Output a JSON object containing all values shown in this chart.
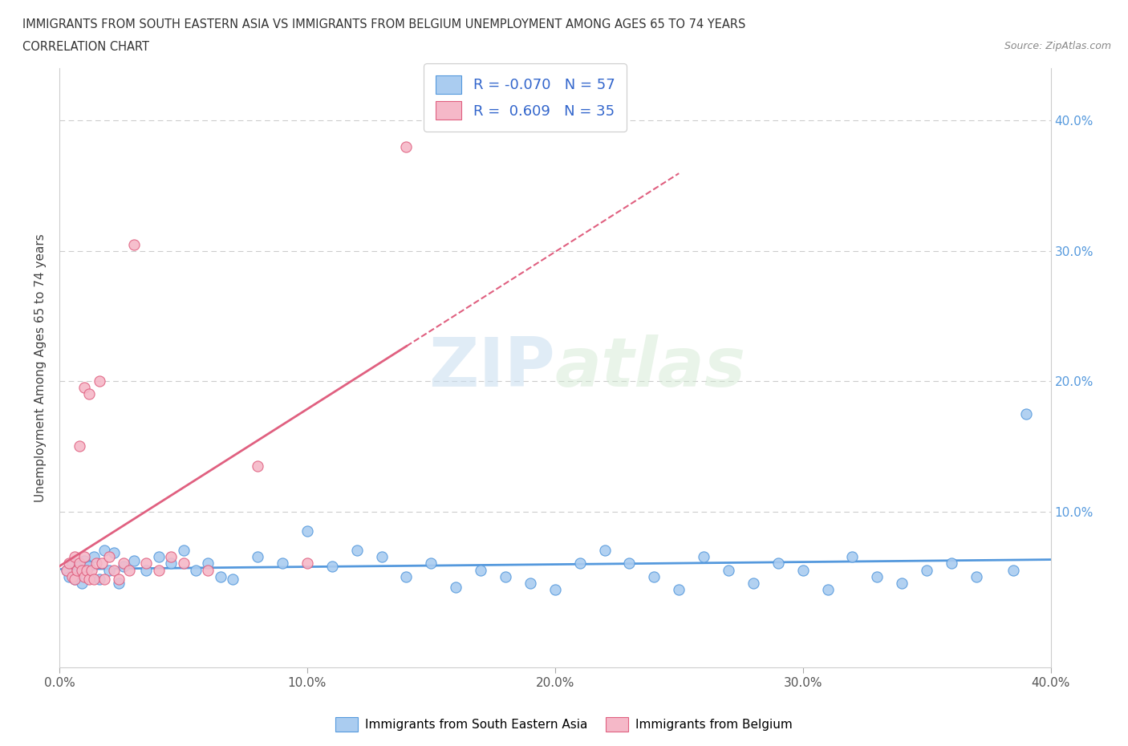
{
  "title_line1": "IMMIGRANTS FROM SOUTH EASTERN ASIA VS IMMIGRANTS FROM BELGIUM UNEMPLOYMENT AMONG AGES 65 TO 74 YEARS",
  "title_line2": "CORRELATION CHART",
  "source_text": "Source: ZipAtlas.com",
  "ylabel": "Unemployment Among Ages 65 to 74 years",
  "xlim": [
    0.0,
    0.4
  ],
  "ylim": [
    -0.02,
    0.44
  ],
  "xtick_labels": [
    "0.0%",
    "10.0%",
    "20.0%",
    "30.0%",
    "40.0%"
  ],
  "xtick_vals": [
    0.0,
    0.1,
    0.2,
    0.3,
    0.4
  ],
  "ytick_labels": [
    "10.0%",
    "20.0%",
    "30.0%",
    "40.0%"
  ],
  "ytick_vals": [
    0.1,
    0.2,
    0.3,
    0.4
  ],
  "watermark_zip": "ZIP",
  "watermark_atlas": "atlas",
  "blue_color": "#aaccf0",
  "pink_color": "#f5b8c8",
  "blue_line_color": "#5599dd",
  "pink_line_color": "#e06080",
  "r_blue": -0.07,
  "n_blue": 57,
  "r_pink": 0.609,
  "n_pink": 35,
  "legend_label_blue": "Immigrants from South Eastern Asia",
  "legend_label_pink": "Immigrants from Belgium",
  "blue_scatter_x": [
    0.003,
    0.004,
    0.005,
    0.006,
    0.007,
    0.008,
    0.009,
    0.01,
    0.012,
    0.014,
    0.016,
    0.018,
    0.02,
    0.022,
    0.024,
    0.026,
    0.03,
    0.035,
    0.04,
    0.045,
    0.05,
    0.055,
    0.06,
    0.065,
    0.07,
    0.08,
    0.09,
    0.1,
    0.11,
    0.12,
    0.13,
    0.14,
    0.15,
    0.16,
    0.17,
    0.18,
    0.19,
    0.2,
    0.21,
    0.22,
    0.23,
    0.24,
    0.25,
    0.26,
    0.27,
    0.28,
    0.29,
    0.3,
    0.31,
    0.32,
    0.33,
    0.34,
    0.35,
    0.36,
    0.37,
    0.385,
    0.39
  ],
  "blue_scatter_y": [
    0.055,
    0.05,
    0.06,
    0.048,
    0.052,
    0.058,
    0.045,
    0.062,
    0.058,
    0.065,
    0.048,
    0.07,
    0.055,
    0.068,
    0.045,
    0.058,
    0.062,
    0.055,
    0.065,
    0.06,
    0.07,
    0.055,
    0.06,
    0.05,
    0.048,
    0.065,
    0.06,
    0.085,
    0.058,
    0.07,
    0.065,
    0.05,
    0.06,
    0.042,
    0.055,
    0.05,
    0.045,
    0.04,
    0.06,
    0.07,
    0.06,
    0.05,
    0.04,
    0.065,
    0.055,
    0.045,
    0.06,
    0.055,
    0.04,
    0.065,
    0.05,
    0.045,
    0.055,
    0.06,
    0.05,
    0.055,
    0.175
  ],
  "pink_scatter_x": [
    0.003,
    0.004,
    0.005,
    0.006,
    0.006,
    0.007,
    0.008,
    0.008,
    0.009,
    0.01,
    0.01,
    0.01,
    0.011,
    0.012,
    0.012,
    0.013,
    0.014,
    0.015,
    0.016,
    0.017,
    0.018,
    0.02,
    0.022,
    0.024,
    0.026,
    0.028,
    0.03,
    0.035,
    0.04,
    0.045,
    0.05,
    0.06,
    0.08,
    0.1,
    0.14
  ],
  "pink_scatter_y": [
    0.055,
    0.06,
    0.05,
    0.048,
    0.065,
    0.055,
    0.06,
    0.15,
    0.055,
    0.05,
    0.065,
    0.195,
    0.055,
    0.048,
    0.19,
    0.055,
    0.048,
    0.06,
    0.2,
    0.06,
    0.048,
    0.065,
    0.055,
    0.048,
    0.06,
    0.055,
    0.305,
    0.06,
    0.055,
    0.065,
    0.06,
    0.055,
    0.135,
    0.06,
    0.38
  ]
}
